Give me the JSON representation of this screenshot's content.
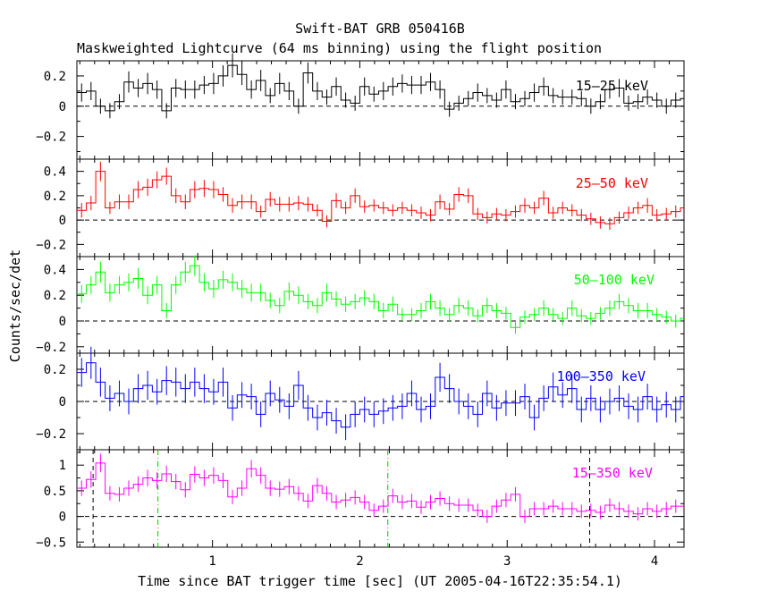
{
  "chart_data": {
    "type": "line",
    "title": "Swift-BAT GRB 050416B",
    "subtitle": "Maskweighted Lightcurve (64 ms binning) using the flight position",
    "xlabel": "Time since BAT trigger time [sec] (UT 2005-04-16T22:35:54.1)",
    "ylabel": "Counts/sec/det",
    "xlim": [
      0.08,
      4.2
    ],
    "x_ticks": [
      1,
      2,
      3,
      4
    ],
    "bin_width": 0.064,
    "time_markers": [
      {
        "x": 0.19,
        "color": "#000000",
        "style": "dash",
        "panel": "bottom"
      },
      {
        "x": 3.56,
        "color": "#000000",
        "style": "dash",
        "panel": "bottom"
      },
      {
        "x": 0.63,
        "color": "#00cc00",
        "style": "dashdot",
        "panel": "bottom"
      },
      {
        "x": 2.19,
        "color": "#00cc00",
        "style": "dashdot",
        "panel": "bottom"
      }
    ],
    "panels": [
      {
        "name": "15-25 keV",
        "label": "15–25 keV",
        "color": "#000000",
        "ylim": [
          -0.35,
          0.3
        ],
        "y_ticks": [
          0.2,
          0,
          -0.2
        ],
        "y_tick_labels": [
          "0.2",
          "0",
          "−0.2"
        ],
        "values": [
          0.09,
          0.1,
          0.0,
          -0.03,
          0.03,
          0.16,
          0.12,
          0.15,
          0.11,
          -0.03,
          0.12,
          0.11,
          0.11,
          0.14,
          0.15,
          0.2,
          0.27,
          0.21,
          0.11,
          0.17,
          0.07,
          0.15,
          0.1,
          0.0,
          0.22,
          0.1,
          0.06,
          0.13,
          0.04,
          0.02,
          0.13,
          0.08,
          0.1,
          0.13,
          0.15,
          0.14,
          0.14,
          0.16,
          0.11,
          -0.02,
          0.02,
          0.05,
          0.09,
          0.07,
          0.04,
          0.11,
          0.03,
          0.05,
          0.09,
          0.13,
          0.07,
          0.06,
          0.06,
          0.05,
          0.0,
          0.03,
          0.11,
          0.12,
          0.02,
          0.03,
          0.06,
          0.04,
          0.0,
          0.04,
          0.05
        ],
        "errors": [
          0.06,
          0.06,
          0.05,
          0.05,
          0.05,
          0.07,
          0.06,
          0.07,
          0.06,
          0.05,
          0.06,
          0.06,
          0.06,
          0.06,
          0.07,
          0.07,
          0.08,
          0.07,
          0.06,
          0.07,
          0.05,
          0.07,
          0.06,
          0.05,
          0.07,
          0.06,
          0.05,
          0.06,
          0.05,
          0.05,
          0.06,
          0.05,
          0.06,
          0.06,
          0.06,
          0.06,
          0.06,
          0.06,
          0.06,
          0.05,
          0.05,
          0.05,
          0.06,
          0.05,
          0.05,
          0.06,
          0.05,
          0.05,
          0.06,
          0.06,
          0.05,
          0.05,
          0.05,
          0.05,
          0.05,
          0.05,
          0.06,
          0.06,
          0.05,
          0.05,
          0.05,
          0.05,
          0.05,
          0.05,
          0.05
        ]
      },
      {
        "name": "25-50 keV",
        "label": "25–50 keV",
        "color": "#ff0000",
        "ylim": [
          -0.3,
          0.5
        ],
        "y_ticks": [
          0.4,
          0.2,
          0,
          -0.2
        ],
        "y_tick_labels": [
          "0.4",
          "0.2",
          "0",
          "−0.2"
        ],
        "values": [
          0.08,
          0.14,
          0.4,
          0.1,
          0.15,
          0.15,
          0.25,
          0.27,
          0.33,
          0.36,
          0.2,
          0.15,
          0.25,
          0.26,
          0.25,
          0.21,
          0.12,
          0.15,
          0.15,
          0.07,
          0.17,
          0.13,
          0.13,
          0.14,
          0.13,
          0.08,
          -0.01,
          0.16,
          0.1,
          0.2,
          0.11,
          0.12,
          0.1,
          0.08,
          0.1,
          0.08,
          0.06,
          0.04,
          0.15,
          0.09,
          0.21,
          0.2,
          0.05,
          0.02,
          0.05,
          0.04,
          0.07,
          0.12,
          0.1,
          0.18,
          0.06,
          0.1,
          0.08,
          0.04,
          0.01,
          -0.02,
          -0.03,
          0.02,
          0.06,
          0.1,
          0.12,
          0.04,
          0.05,
          0.07,
          0.1
        ],
        "errors": [
          0.06,
          0.06,
          0.08,
          0.05,
          0.06,
          0.06,
          0.07,
          0.07,
          0.07,
          0.07,
          0.06,
          0.06,
          0.07,
          0.07,
          0.07,
          0.06,
          0.06,
          0.06,
          0.06,
          0.05,
          0.06,
          0.06,
          0.06,
          0.06,
          0.06,
          0.05,
          0.05,
          0.06,
          0.05,
          0.06,
          0.05,
          0.05,
          0.05,
          0.05,
          0.05,
          0.05,
          0.05,
          0.05,
          0.06,
          0.05,
          0.06,
          0.06,
          0.05,
          0.05,
          0.05,
          0.05,
          0.05,
          0.06,
          0.05,
          0.06,
          0.05,
          0.05,
          0.05,
          0.05,
          0.05,
          0.05,
          0.05,
          0.05,
          0.05,
          0.05,
          0.06,
          0.05,
          0.05,
          0.05,
          0.05
        ]
      },
      {
        "name": "50-100 keV",
        "label": "50–100 keV",
        "color": "#00ff00",
        "ylim": [
          -0.25,
          0.5
        ],
        "y_ticks": [
          0.4,
          0.2,
          0,
          -0.2
        ],
        "y_tick_labels": [
          "0.4",
          "0.2",
          "0",
          "−0.2"
        ],
        "values": [
          0.21,
          0.28,
          0.38,
          0.22,
          0.28,
          0.3,
          0.33,
          0.2,
          0.28,
          0.08,
          0.28,
          0.38,
          0.43,
          0.3,
          0.25,
          0.32,
          0.3,
          0.25,
          0.22,
          0.22,
          0.16,
          0.12,
          0.23,
          0.2,
          0.15,
          0.12,
          0.22,
          0.17,
          0.13,
          0.15,
          0.18,
          0.15,
          0.08,
          0.13,
          0.05,
          0.05,
          0.08,
          0.15,
          0.1,
          0.05,
          0.12,
          0.1,
          0.04,
          0.12,
          0.08,
          0.06,
          -0.05,
          0.03,
          0.05,
          0.1,
          0.05,
          0.02,
          0.1,
          0.04,
          0.02,
          0.06,
          0.1,
          0.15,
          0.12,
          0.08,
          0.08,
          0.05,
          0.03,
          0.0,
          0.02
        ],
        "errors": [
          0.07,
          0.07,
          0.08,
          0.07,
          0.07,
          0.07,
          0.08,
          0.07,
          0.07,
          0.06,
          0.07,
          0.08,
          0.08,
          0.07,
          0.07,
          0.07,
          0.07,
          0.07,
          0.07,
          0.07,
          0.06,
          0.06,
          0.07,
          0.07,
          0.06,
          0.06,
          0.07,
          0.06,
          0.06,
          0.06,
          0.06,
          0.06,
          0.06,
          0.06,
          0.05,
          0.05,
          0.06,
          0.06,
          0.06,
          0.05,
          0.06,
          0.06,
          0.05,
          0.06,
          0.06,
          0.05,
          0.05,
          0.05,
          0.05,
          0.06,
          0.05,
          0.05,
          0.06,
          0.05,
          0.05,
          0.05,
          0.06,
          0.06,
          0.06,
          0.06,
          0.06,
          0.05,
          0.05,
          0.05,
          0.05
        ]
      },
      {
        "name": "100-350 keV",
        "label": "100–350 keV",
        "color": "#0000ff",
        "ylim": [
          -0.3,
          0.3
        ],
        "y_ticks": [
          0.2,
          0,
          -0.2
        ],
        "y_tick_labels": [
          "0.2",
          "0",
          "−0.2"
        ],
        "values": [
          0.18,
          0.24,
          0.12,
          0.02,
          0.05,
          0.0,
          0.08,
          0.1,
          0.06,
          0.13,
          0.12,
          0.08,
          0.12,
          0.08,
          0.06,
          0.12,
          -0.04,
          0.04,
          0.03,
          -0.08,
          0.05,
          0.01,
          -0.03,
          0.1,
          -0.04,
          -0.1,
          -0.07,
          -0.12,
          -0.16,
          -0.08,
          -0.05,
          -0.08,
          -0.06,
          -0.04,
          -0.03,
          0.05,
          -0.05,
          -0.03,
          0.15,
          0.08,
          0.0,
          -0.03,
          -0.08,
          0.05,
          -0.04,
          -0.01,
          -0.01,
          0.03,
          -0.1,
          0.02,
          0.09,
          0.04,
          0.08,
          -0.05,
          0.02,
          -0.05,
          0.0,
          0.02,
          -0.03,
          -0.05,
          0.03,
          -0.05,
          -0.02,
          -0.05,
          0.03
        ],
        "errors": [
          0.09,
          0.1,
          0.09,
          0.08,
          0.08,
          0.08,
          0.09,
          0.09,
          0.08,
          0.09,
          0.09,
          0.09,
          0.09,
          0.09,
          0.08,
          0.09,
          0.08,
          0.08,
          0.08,
          0.08,
          0.08,
          0.08,
          0.08,
          0.09,
          0.08,
          0.08,
          0.08,
          0.08,
          0.08,
          0.08,
          0.08,
          0.08,
          0.08,
          0.08,
          0.08,
          0.08,
          0.08,
          0.08,
          0.09,
          0.09,
          0.08,
          0.08,
          0.08,
          0.08,
          0.08,
          0.08,
          0.08,
          0.08,
          0.08,
          0.08,
          0.09,
          0.08,
          0.09,
          0.08,
          0.08,
          0.08,
          0.08,
          0.08,
          0.08,
          0.08,
          0.08,
          0.08,
          0.08,
          0.08,
          0.08
        ]
      },
      {
        "name": "15-350 keV",
        "label": "15–350 keV",
        "color": "#ff00ff",
        "ylim": [
          -0.6,
          1.3
        ],
        "y_ticks": [
          1,
          0.5,
          0,
          -0.5
        ],
        "y_tick_labels": [
          "1",
          "0.5",
          "0",
          "−0.5"
        ],
        "values": [
          0.55,
          0.72,
          1.04,
          0.45,
          0.43,
          0.55,
          0.63,
          0.75,
          0.7,
          0.83,
          0.68,
          0.52,
          0.82,
          0.75,
          0.8,
          0.7,
          0.38,
          0.55,
          0.93,
          0.8,
          0.55,
          0.53,
          0.58,
          0.45,
          0.3,
          0.6,
          0.45,
          0.28,
          0.32,
          0.37,
          0.28,
          0.12,
          0.2,
          0.4,
          0.28,
          0.3,
          0.18,
          0.28,
          0.35,
          0.25,
          0.22,
          0.22,
          0.12,
          0.0,
          0.2,
          0.32,
          0.43,
          0.0,
          0.15,
          0.15,
          0.2,
          0.15,
          0.15,
          0.1,
          0.12,
          0.08,
          0.22,
          0.15,
          0.1,
          0.05,
          0.15,
          0.1,
          0.15,
          0.2,
          0.2
        ],
        "errors": [
          0.15,
          0.16,
          0.18,
          0.14,
          0.14,
          0.15,
          0.15,
          0.16,
          0.16,
          0.16,
          0.15,
          0.15,
          0.16,
          0.16,
          0.16,
          0.15,
          0.14,
          0.15,
          0.17,
          0.16,
          0.15,
          0.15,
          0.15,
          0.14,
          0.14,
          0.15,
          0.14,
          0.14,
          0.14,
          0.14,
          0.14,
          0.13,
          0.13,
          0.14,
          0.14,
          0.14,
          0.13,
          0.14,
          0.14,
          0.14,
          0.13,
          0.13,
          0.13,
          0.13,
          0.13,
          0.14,
          0.14,
          0.13,
          0.13,
          0.13,
          0.13,
          0.13,
          0.13,
          0.13,
          0.13,
          0.13,
          0.13,
          0.13,
          0.13,
          0.13,
          0.13,
          0.13,
          0.13,
          0.13,
          0.13
        ]
      }
    ]
  }
}
